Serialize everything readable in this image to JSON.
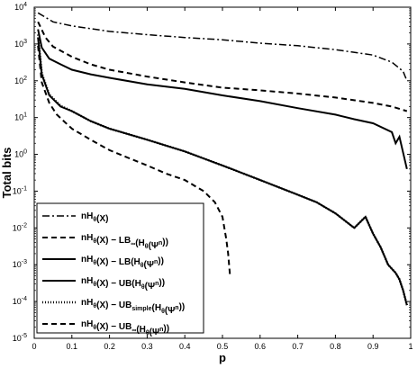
{
  "chart_data": {
    "type": "line",
    "title": "",
    "xlabel": "p",
    "ylabel": "Total bits",
    "xlim": [
      0,
      1
    ],
    "ylim_log10": [
      -5,
      4
    ],
    "y_scale": "log",
    "grid": false,
    "legend_position": "lower-left",
    "x_ticks": [
      "0",
      "0.1",
      "0.2",
      "0.3",
      "0.4",
      "0.5",
      "0.6",
      "0.7",
      "0.8",
      "0.9",
      "1"
    ],
    "x_tick_values": [
      0,
      0.1,
      0.2,
      0.3,
      0.4,
      0.5,
      0.6,
      0.7,
      0.8,
      0.9,
      1
    ],
    "y_tick_exponents": [
      -5,
      -4,
      -3,
      -2,
      -1,
      0,
      1,
      2,
      3,
      4
    ],
    "y_tick_base": "10",
    "series": [
      {
        "name": "nH_θ(X)",
        "style": "dashdot",
        "points": [
          [
            0.01,
            7000
          ],
          [
            0.05,
            4000
          ],
          [
            0.1,
            3100
          ],
          [
            0.2,
            2200
          ],
          [
            0.3,
            1800
          ],
          [
            0.4,
            1500
          ],
          [
            0.5,
            1300
          ],
          [
            0.6,
            1050
          ],
          [
            0.7,
            900
          ],
          [
            0.8,
            700
          ],
          [
            0.9,
            500
          ],
          [
            0.95,
            320
          ],
          [
            0.98,
            180
          ],
          [
            0.99,
            100
          ]
        ]
      },
      {
        "name": "nH_θ(X) − LB_∞(H_θ(Ψ^n))",
        "style": "dashed",
        "points": [
          [
            0.01,
            4000
          ],
          [
            0.03,
            1500
          ],
          [
            0.05,
            850
          ],
          [
            0.1,
            450
          ],
          [
            0.15,
            280
          ],
          [
            0.2,
            200
          ],
          [
            0.3,
            130
          ],
          [
            0.4,
            90
          ],
          [
            0.5,
            65
          ],
          [
            0.6,
            55
          ],
          [
            0.7,
            45
          ],
          [
            0.8,
            35
          ],
          [
            0.9,
            25
          ],
          [
            0.95,
            20
          ],
          [
            0.99,
            15
          ]
        ]
      },
      {
        "name": "nH_θ(X) − LB(H_θ(Ψ^n))",
        "style": "solid",
        "points": [
          [
            0.01,
            2500
          ],
          [
            0.02,
            800
          ],
          [
            0.04,
            400
          ],
          [
            0.07,
            280
          ],
          [
            0.1,
            200
          ],
          [
            0.15,
            150
          ],
          [
            0.2,
            120
          ],
          [
            0.3,
            80
          ],
          [
            0.4,
            60
          ],
          [
            0.5,
            40
          ],
          [
            0.6,
            28
          ],
          [
            0.7,
            18
          ],
          [
            0.8,
            12
          ],
          [
            0.85,
            9
          ],
          [
            0.9,
            7
          ],
          [
            0.95,
            4
          ],
          [
            0.96,
            2
          ],
          [
            0.97,
            3
          ],
          [
            0.99,
            0.4
          ]
        ]
      },
      {
        "name": "nH_θ(X) − UB(H_θ(Ψ^n))",
        "style": "solid",
        "points": [
          [
            0.01,
            1500
          ],
          [
            0.02,
            150
          ],
          [
            0.04,
            40
          ],
          [
            0.07,
            20
          ],
          [
            0.1,
            15
          ],
          [
            0.15,
            8
          ],
          [
            0.2,
            5
          ],
          [
            0.3,
            2.5
          ],
          [
            0.4,
            1.2
          ],
          [
            0.5,
            0.5
          ],
          [
            0.6,
            0.2
          ],
          [
            0.7,
            0.08
          ],
          [
            0.75,
            0.05
          ],
          [
            0.8,
            0.025
          ],
          [
            0.85,
            0.01
          ],
          [
            0.88,
            0.02
          ],
          [
            0.9,
            0.007
          ],
          [
            0.92,
            0.003
          ],
          [
            0.94,
            0.001
          ],
          [
            0.96,
            0.0006
          ],
          [
            0.97,
            0.0004
          ],
          [
            0.98,
            0.0002
          ],
          [
            0.99,
            8e-05
          ]
        ]
      },
      {
        "name": "nH_θ(X) − UB_simple(H_θ(Ψ^n))",
        "style": "dotted",
        "points": [
          [
            0.01,
            1800
          ],
          [
            0.02,
            160
          ],
          [
            0.04,
            42
          ],
          [
            0.07,
            21
          ],
          [
            0.1,
            15
          ],
          [
            0.15,
            8
          ],
          [
            0.2,
            5
          ],
          [
            0.3,
            2.5
          ],
          [
            0.4,
            1.2
          ],
          [
            0.5,
            0.5
          ],
          [
            0.6,
            0.2
          ],
          [
            0.7,
            0.08
          ],
          [
            0.75,
            0.05
          ],
          [
            0.8,
            0.025
          ],
          [
            0.85,
            0.01
          ],
          [
            0.88,
            0.02
          ],
          [
            0.9,
            0.007
          ],
          [
            0.92,
            0.003
          ],
          [
            0.94,
            0.001
          ],
          [
            0.96,
            0.0006
          ],
          [
            0.97,
            0.0004
          ],
          [
            0.98,
            0.0002
          ],
          [
            0.99,
            8e-05
          ]
        ]
      },
      {
        "name": "nH_θ(X) − UB_∞(H_θ(Ψ^n))",
        "style": "dashed",
        "points": [
          [
            0.01,
            900
          ],
          [
            0.02,
            90
          ],
          [
            0.04,
            25
          ],
          [
            0.06,
            12
          ],
          [
            0.1,
            5
          ],
          [
            0.15,
            2.5
          ],
          [
            0.2,
            1.3
          ],
          [
            0.25,
            0.8
          ],
          [
            0.3,
            0.5
          ],
          [
            0.35,
            0.3
          ],
          [
            0.4,
            0.2
          ],
          [
            0.45,
            0.1
          ],
          [
            0.48,
            0.05
          ],
          [
            0.5,
            0.02
          ],
          [
            0.51,
            0.005
          ],
          [
            0.515,
            0.002
          ],
          [
            0.52,
            0.0005
          ]
        ]
      }
    ]
  }
}
